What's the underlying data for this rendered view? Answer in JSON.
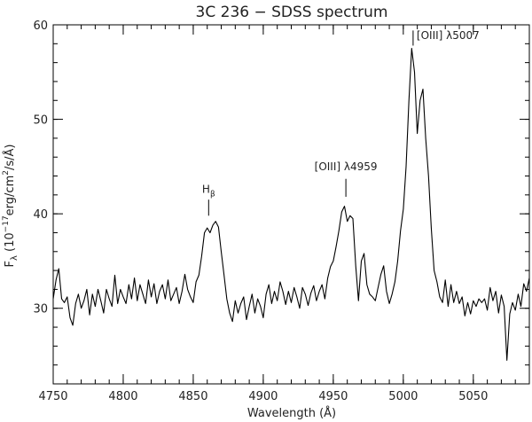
{
  "chart_data": {
    "type": "line",
    "title": "3C 236 − SDSS spectrum",
    "xlabel": "Wavelength (Å)",
    "ylabel": {
      "symbol": "F",
      "symbol_sub": "λ",
      "prefix": "(10",
      "exp1": "−17",
      "mid": "erg/cm",
      "exp2": "2",
      "suffix": "/s/Å)"
    },
    "xlim": [
      4750,
      5090
    ],
    "ylim": [
      22,
      60
    ],
    "x_ticks": [
      4750,
      4800,
      4850,
      4900,
      4950,
      5000,
      5050
    ],
    "y_ticks": [
      30,
      40,
      50,
      60
    ],
    "x_minor_step": 10,
    "y_minor_step": 2,
    "grid": false,
    "color": "#000000",
    "annotations": [
      {
        "text": "H",
        "sub": "β",
        "x": 4861,
        "y_text": 42.2,
        "line_from": 41.5,
        "line_to": 39.8
      },
      {
        "text": "[OIII] λ4959",
        "x": 4959,
        "y_text": 44.6,
        "line_from": 43.7,
        "line_to": 41.8
      },
      {
        "text": "[OIII] λ5007",
        "x": 5007,
        "y_text": 58.5,
        "line_from": 59.4,
        "line_to": 57.8
      }
    ],
    "x": [
      4750,
      4752,
      4754,
      4756,
      4758,
      4760,
      4762,
      4764,
      4766,
      4768,
      4770,
      4772,
      4774,
      4776,
      4778,
      4780,
      4782,
      4784,
      4786,
      4788,
      4790,
      4792,
      4794,
      4796,
      4798,
      4800,
      4802,
      4804,
      4806,
      4808,
      4810,
      4812,
      4814,
      4816,
      4818,
      4820,
      4822,
      4824,
      4826,
      4828,
      4830,
      4832,
      4834,
      4836,
      4838,
      4840,
      4842,
      4844,
      4846,
      4848,
      4850,
      4852,
      4854,
      4856,
      4858,
      4860,
      4862,
      4864,
      4866,
      4868,
      4870,
      4872,
      4874,
      4876,
      4878,
      4880,
      4882,
      4884,
      4886,
      4888,
      4890,
      4892,
      4894,
      4896,
      4898,
      4900,
      4902,
      4904,
      4906,
      4908,
      4910,
      4912,
      4914,
      4916,
      4918,
      4920,
      4922,
      4924,
      4926,
      4928,
      4930,
      4932,
      4934,
      4936,
      4938,
      4940,
      4942,
      4944,
      4946,
      4948,
      4950,
      4952,
      4954,
      4956,
      4958,
      4960,
      4962,
      4964,
      4966,
      4968,
      4970,
      4972,
      4974,
      4976,
      4978,
      4980,
      4982,
      4984,
      4986,
      4988,
      4990,
      4992,
      4994,
      4996,
      4998,
      5000,
      5002,
      5004,
      5006,
      5008,
      5010,
      5012,
      5014,
      5016,
      5018,
      5020,
      5022,
      5024,
      5026,
      5028,
      5030,
      5032,
      5034,
      5036,
      5038,
      5040,
      5042,
      5044,
      5046,
      5048,
      5050,
      5052,
      5054,
      5056,
      5058,
      5060,
      5062,
      5064,
      5066,
      5068,
      5070,
      5072,
      5074,
      5076,
      5078,
      5080,
      5082,
      5084,
      5086,
      5088,
      5090
    ],
    "y": [
      31.0,
      33.0,
      34.2,
      31.0,
      30.6,
      31.2,
      29.0,
      28.2,
      30.5,
      31.5,
      30.0,
      30.8,
      32.0,
      29.3,
      31.5,
      30.2,
      32.0,
      30.8,
      29.5,
      32.0,
      31.0,
      30.2,
      33.5,
      30.5,
      32.0,
      31.2,
      30.5,
      32.5,
      31.0,
      33.2,
      30.8,
      32.5,
      31.5,
      30.5,
      33.0,
      31.2,
      32.6,
      30.5,
      31.8,
      32.5,
      31.0,
      33.0,
      30.8,
      31.5,
      32.2,
      30.5,
      31.8,
      33.6,
      32.0,
      31.2,
      30.6,
      32.8,
      33.5,
      35.5,
      38.0,
      38.5,
      38.0,
      38.8,
      39.2,
      38.6,
      36.0,
      33.5,
      31.0,
      29.5,
      28.6,
      30.8,
      29.5,
      30.5,
      31.2,
      28.8,
      30.2,
      31.5,
      29.5,
      31.0,
      30.2,
      29.0,
      31.5,
      32.5,
      30.5,
      31.8,
      30.8,
      32.8,
      31.8,
      30.4,
      31.8,
      30.6,
      32.2,
      31.2,
      30.0,
      32.2,
      31.5,
      30.3,
      31.6,
      32.4,
      30.8,
      31.8,
      32.5,
      31.0,
      33.2,
      34.4,
      35.0,
      36.5,
      38.2,
      40.2,
      40.8,
      39.2,
      39.8,
      39.5,
      34.5,
      30.8,
      35.0,
      35.8,
      32.5,
      31.5,
      31.2,
      30.8,
      32.2,
      33.6,
      34.5,
      31.8,
      30.5,
      31.5,
      32.8,
      35.0,
      38.2,
      40.5,
      45.0,
      52.0,
      57.5,
      55.0,
      48.5,
      52.0,
      53.2,
      48.0,
      44.0,
      38.5,
      34.0,
      32.8,
      31.2,
      30.6,
      33.0,
      30.2,
      32.5,
      30.6,
      31.8,
      30.5,
      31.2,
      29.2,
      30.6,
      29.4,
      30.8,
      30.2,
      31.0,
      30.6,
      31.0,
      29.8,
      32.2,
      30.8,
      31.8,
      29.5,
      31.4,
      30.2,
      24.5,
      29.4,
      30.6,
      29.8,
      31.5,
      30.2,
      32.6,
      31.8,
      33.2
    ]
  }
}
